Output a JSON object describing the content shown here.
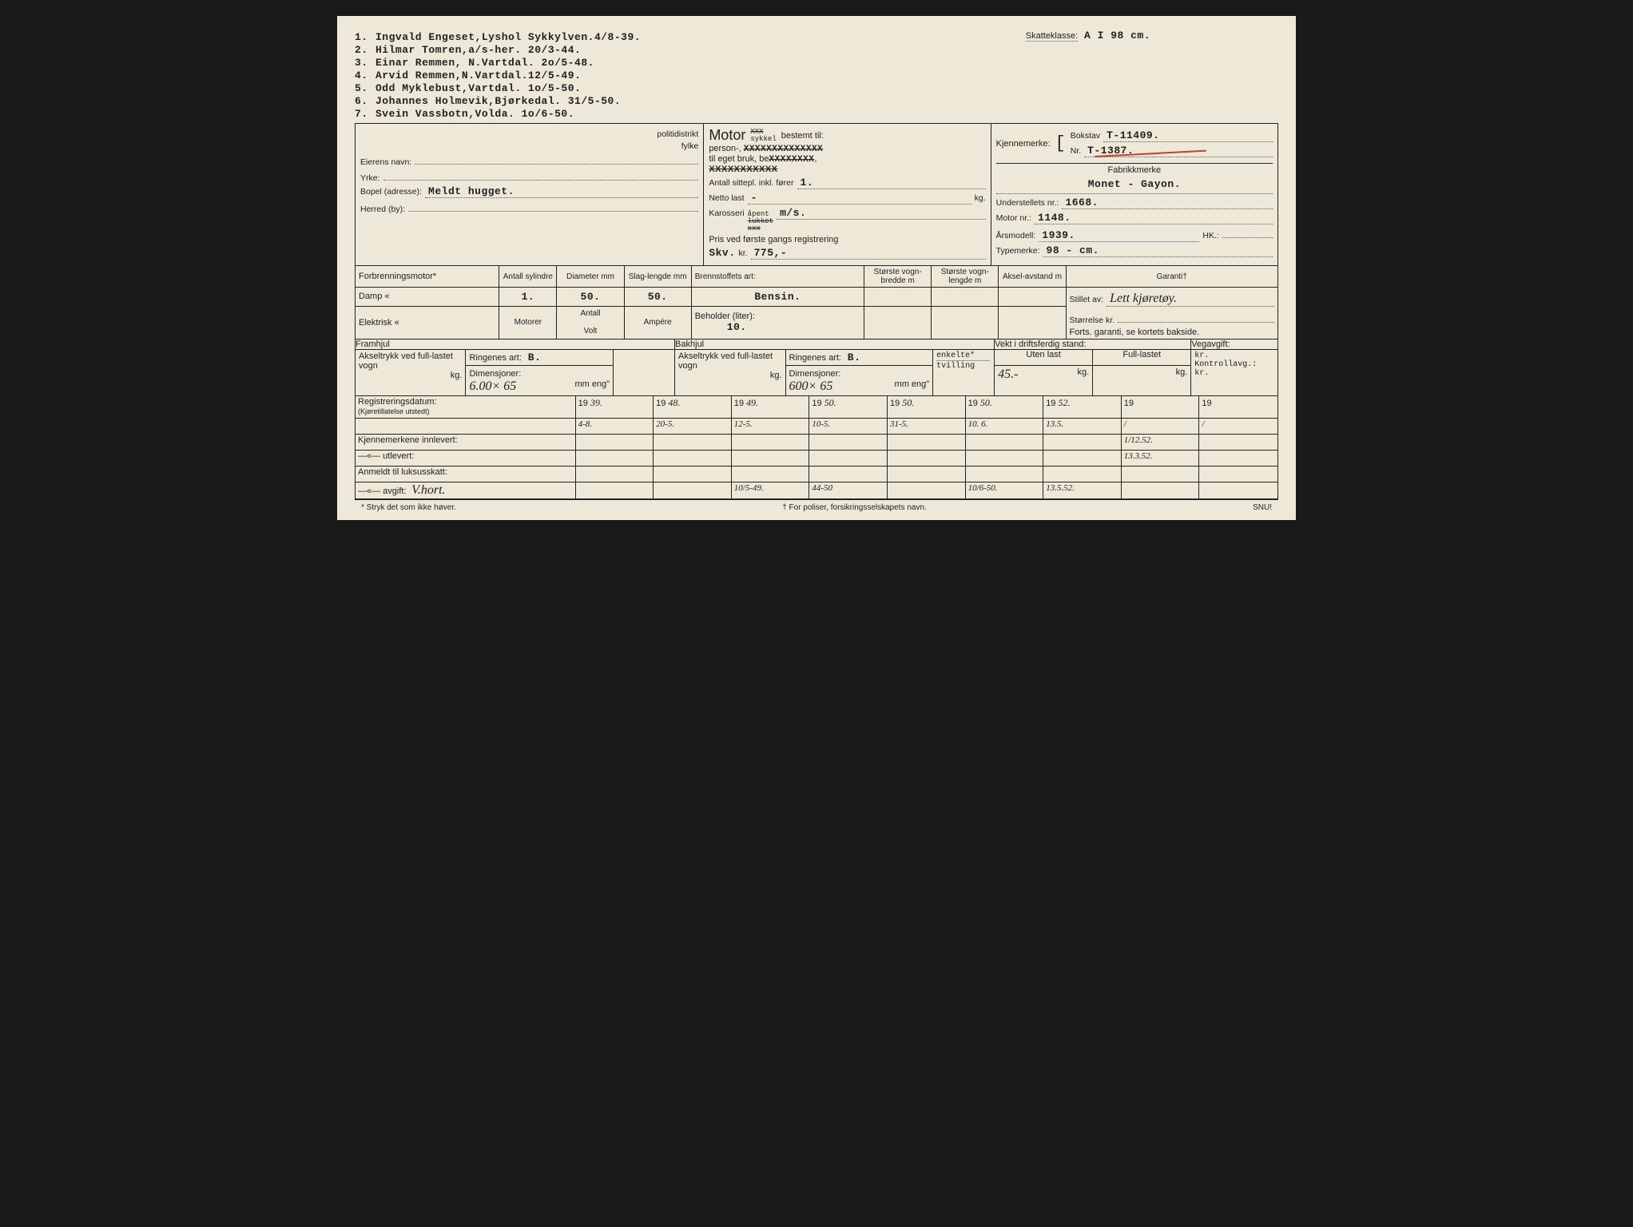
{
  "owners": [
    {
      "n": "1.",
      "text": "Ingvald Engeset,Lyshol Sykkylven.4/8-39."
    },
    {
      "n": "2.",
      "text": "Hilmar Tomren,a/s-her.  20/3-44."
    },
    {
      "n": "3.",
      "text": "Einar Remmen, N.Vartdal. 2o/5-48."
    },
    {
      "n": "4.",
      "text": "Arvid Remmen,N.Vartdal.12/5-49."
    },
    {
      "n": "5.",
      "text": "Odd Myklebust,Vartdal. 1o/5-50."
    },
    {
      "n": "6.",
      "text": "Johannes Holmevik,Bjørkedal. 31/5-50."
    },
    {
      "n": "7.",
      "text": "Svein Vassbotn,Volda. 1o/6-50."
    }
  ],
  "skatteklasse_label": "Skatteklasse:",
  "skatteklasse": "A I 98 cm.",
  "left": {
    "politidistrikt_lbl": "politidistrikt",
    "fylke_lbl": "fylke",
    "eier_lbl": "Eierens navn:",
    "yrke_lbl": "Yrke:",
    "bopel_lbl": "Bopel (adresse):",
    "bopel_val": "Meldt hugget.",
    "herred_lbl": "Herred (by):"
  },
  "mid": {
    "motor": "Motor",
    "xxx": "XXX",
    "sykkel": "sykkel",
    "bestemt": "bestemt til:",
    "person": "person-,",
    "person_x": "XXXXXXXXXXXXXX",
    "eget": "til eget bruk, be",
    "eget_x": "XXXXXXXX",
    "drosje_x": "XXXXXXXXXXX",
    "sittepl_lbl": "Antall sittepl. inkl. fører",
    "sittepl": "1.",
    "netto_lbl": "Netto last",
    "netto": "-",
    "netto_unit": "kg.",
    "karosseri_lbl": "Karosseri",
    "apent": "åpent",
    "lukket_x": "lukket",
    "xxx2": "xxx",
    "karosseri": "m/s.",
    "pris_lbl": "Pris ved første gangs registrering",
    "skv": "Skv.",
    "kr": "kr.",
    "pris": "775,-"
  },
  "right": {
    "kjenn_lbl": "Kjennemerke:",
    "bokstav_lbl": "Bokstav",
    "bokstav": "T-11409.",
    "nr_lbl": "Nr.",
    "nr": "T-1387.",
    "fabrikk_lbl": "Fabrikkmerke",
    "fabrikk": "Monet - Gayon.",
    "understell_lbl": "Understellets nr.:",
    "understell": "1668.",
    "motornr_lbl": "Motor nr.:",
    "motornr": "1148.",
    "aarsmodell_lbl": "Årsmodell:",
    "aarsmodell": "1939.",
    "hk_lbl": "HK.:",
    "typemerke_lbl": "Typemerke:",
    "typemerke": "98 - cm."
  },
  "engine": {
    "forbr": "Forbrenningsmotor*",
    "damp": "Damp        «",
    "elektrisk": "Elektrisk   «",
    "ant_syl_h": "Antall sylindre",
    "diam_h": "Diameter mm",
    "slag_h": "Slag-lengde mm",
    "ant_syl": "1.",
    "diam": "50.",
    "slag": "50.",
    "motorer_h": "Motorer",
    "antall_h": "Antall",
    "volt_h": "Volt",
    "ampere_h": "Ampére",
    "brenn_h": "Brennstoffets art:",
    "brenn": "Bensin.",
    "beholder_h": "Beholder (liter):",
    "beholder": "10.",
    "bredde_h": "Største vogn-bredde m",
    "lengde_h": "Største vogn-lengde m",
    "aksel_h": "Aksel-avstand m",
    "garanti_h": "Garanti†",
    "stillet_lbl": "Stillet av:",
    "stillet": "Lett kjøretøy.",
    "storrelse_lbl": "Størrelse kr.",
    "forts": "Forts. garanti, se kortets bakside."
  },
  "wheels": {
    "fram_h": "Framhjul",
    "bak_h": "Bakhjul",
    "vekt_h": "Vekt i driftsferdig stand:",
    "vegavg_h": "Vegavgift:",
    "aksel_lbl": "Akseltrykk ved full-lastet vogn",
    "ring_lbl": "Ringenes art:",
    "ring_f": "B.",
    "ring_b": "B.",
    "enkelte": "enkelte*",
    "tvilling": "tvilling",
    "uten_h": "Uten last",
    "full_h": "Full-lastet",
    "dim_lbl": "Dimensjoner:",
    "mm_eng": "mm eng\"",
    "dim_f": "6.00× 65",
    "dim_b": "600× 65",
    "uten": "45.-",
    "kg": "kg.",
    "kr": "kr.",
    "kontroll": "Kontrollavg.:"
  },
  "dates": {
    "reg_lbl": "Registreringsdatum:",
    "reg_sub": "(Kjøretillatelse utstedt)",
    "kjenn_inn": "Kjennemerkene innlevert:",
    "utlevert": "—«—        utlevert:",
    "anmeldt": "Anmeldt til luksusskatt:",
    "avgift": "—«—    avgift:",
    "avgift_hw": "V.hort.",
    "years": [
      "19 39.",
      "19 48.",
      "19 49.",
      "19 50.",
      "19 50.",
      "19 50.",
      "19 52.",
      "19",
      "19",
      "19"
    ],
    "row1": [
      "4-8.",
      "20-5.",
      "12-5.",
      "10-5.",
      "31-5.",
      "10. 6.",
      "13.5.",
      "/",
      "/",
      "/"
    ],
    "row2": [
      "",
      "",
      "",
      "",
      "",
      "",
      "",
      "1/12.52.",
      "",
      ""
    ],
    "row3": [
      "",
      "",
      "",
      "",
      "",
      "",
      "",
      "13.3.52.",
      "",
      ""
    ],
    "row5": [
      "",
      "",
      "10/5-49.",
      "44-50",
      "",
      "10/6-50.",
      "13.5.52.",
      "",
      "",
      ""
    ]
  },
  "footer": {
    "stryk": "* Stryk det som ikke høver.",
    "poliser": "† For poliser, forsikringsselskapets navn.",
    "snu": "SNU!"
  },
  "colors": {
    "paper": "#ede8d8",
    "ink": "#222222",
    "red": "#c04030"
  }
}
